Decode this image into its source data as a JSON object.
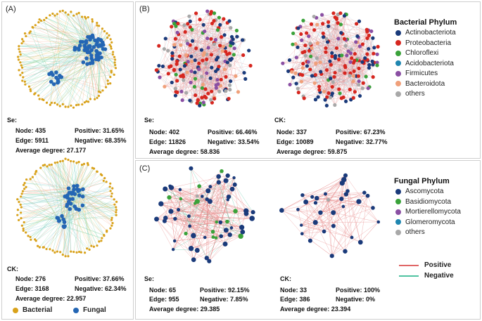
{
  "panel_labels": {
    "a": "(A)",
    "b": "(B)",
    "c": "(C)"
  },
  "panel_a": {
    "se": {
      "title": "Se:",
      "node_label": "Node: 435",
      "edge_label": "Edge: 5911",
      "positive_label": "Positive: 31.65%",
      "negative_label": "Negative: 68.35%",
      "avg_label": "Average degree: 27.177"
    },
    "ck": {
      "title": "CK:",
      "node_label": "Node: 276",
      "edge_label": "Edge: 3168",
      "positive_label": "Positive: 37.66%",
      "negative_label": "Negative: 62.34%",
      "avg_label": "Average degree: 22.957"
    },
    "legend": [
      {
        "label": "Bacterial",
        "color": "#d9a21b"
      },
      {
        "label": "Fungal",
        "color": "#2466b4"
      }
    ]
  },
  "panel_b": {
    "se": {
      "title": "Se:",
      "node_label": "Node: 402",
      "edge_label": "Edge: 11826",
      "positive_label": "Positive: 66.46%",
      "negative_label": "Negative: 33.54%",
      "avg_label": "Average degree: 58.836"
    },
    "ck": {
      "title": "CK:",
      "node_label": "Node: 337",
      "edge_label": "Edge: 10089",
      "positive_label": "Positive: 67.23%",
      "negative_label": "Negative: 32.77%",
      "avg_label": "Average degree: 59.875"
    },
    "legend_title": "Bacterial Phylum",
    "legend": [
      {
        "label": "Actinobacteriota",
        "color": "#1a3a7a"
      },
      {
        "label": "Proteobacteria",
        "color": "#d6261f"
      },
      {
        "label": "Chloroflexi",
        "color": "#3aa23a"
      },
      {
        "label": "Acidobacteriota",
        "color": "#1f86b0"
      },
      {
        "label": "Firmicutes",
        "color": "#8a4fa3"
      },
      {
        "label": "Bacteroidota",
        "color": "#f0a07a"
      },
      {
        "label": "others",
        "color": "#a8a8a8"
      }
    ]
  },
  "panel_c": {
    "se": {
      "title": "Se:",
      "node_label": "Node: 65",
      "edge_label": "Edge: 955",
      "positive_label": "Positive: 92.15%",
      "negative_label": "Negative: 7.85%",
      "avg_label": "Average degree: 29.385"
    },
    "ck": {
      "title": "CK:",
      "node_label": "Node: 33",
      "edge_label": "Edge: 386",
      "positive_label": "Positive: 100%",
      "negative_label": "Negative: 0%",
      "avg_label": "Average degree: 23.394"
    },
    "legend_title": "Fungal Phylum",
    "legend": [
      {
        "label": "Ascomycota",
        "color": "#1a3a7a"
      },
      {
        "label": "Basidiomycota",
        "color": "#3aa23a"
      },
      {
        "label": "Mortierellomycota",
        "color": "#8a4fa3"
      },
      {
        "label": "Glomeromycota",
        "color": "#1f86b0"
      },
      {
        "label": "others",
        "color": "#a8a8a8"
      }
    ],
    "edge_legend": [
      {
        "label": "Positive",
        "color": "#e06666"
      },
      {
        "label": "Negative",
        "color": "#4fc3a1"
      }
    ]
  }
}
